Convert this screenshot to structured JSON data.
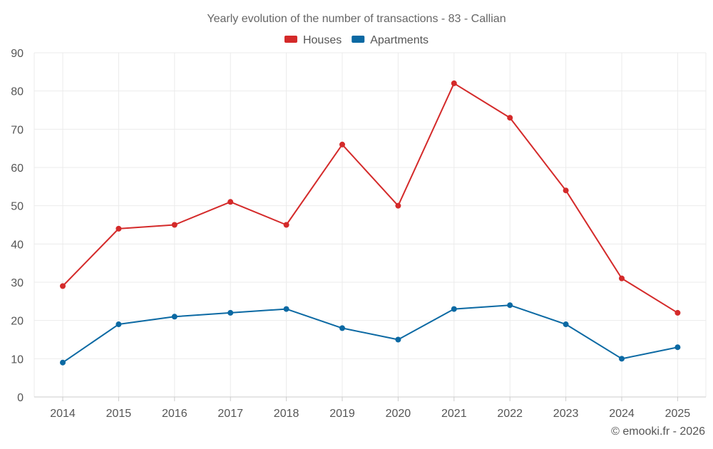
{
  "chart_data": {
    "type": "line",
    "title": "Yearly evolution of the number of transactions - 83 - Callian",
    "xlabel": "",
    "ylabel": "",
    "categories": [
      "2014",
      "2015",
      "2016",
      "2017",
      "2018",
      "2019",
      "2020",
      "2021",
      "2022",
      "2023",
      "2024",
      "2025"
    ],
    "ylim": [
      0,
      90
    ],
    "yticks": [
      0,
      10,
      20,
      30,
      40,
      50,
      60,
      70,
      80,
      90
    ],
    "grid": true,
    "legend_position": "top-center",
    "series": [
      {
        "name": "Houses",
        "color": "#d42a2a",
        "values": [
          29,
          44,
          45,
          51,
          45,
          66,
          50,
          82,
          73,
          54,
          31,
          22
        ]
      },
      {
        "name": "Apartments",
        "color": "#0b69a3",
        "values": [
          9,
          19,
          21,
          22,
          23,
          18,
          15,
          23,
          24,
          19,
          10,
          13
        ]
      }
    ]
  },
  "credit": "© emooki.fr - 2026"
}
